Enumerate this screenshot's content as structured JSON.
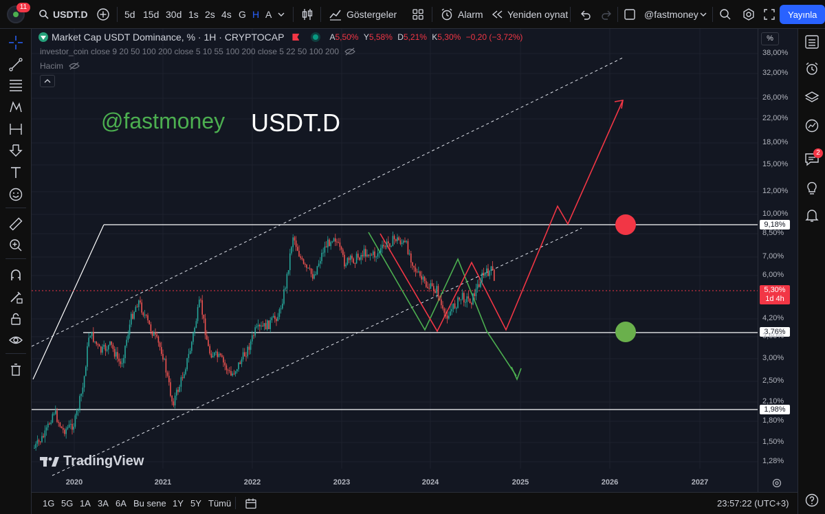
{
  "header": {
    "avatar_badge": "11",
    "symbol": "USDT.D",
    "intervals": [
      "5d",
      "15d",
      "30d",
      "1s",
      "2s",
      "4s",
      "G",
      "H",
      "A"
    ],
    "active_interval": "H",
    "indicators_label": "Göstergeler",
    "alarm_label": "Alarm",
    "replay_label": "Yeniden oynat",
    "layout_name": "@fastmoney",
    "publish_label": "Yayınla"
  },
  "legend": {
    "title": "Market Cap USDT Dominance, % · 1H · CRYPTOCAP",
    "ohlc": {
      "a_label": "A",
      "a": "5,50%",
      "y_label": "Y",
      "y": "5,58%",
      "d_label": "D",
      "d": "5,21%",
      "k_label": "K",
      "k": "5,30%",
      "change": "−0,20 (−3,72%)"
    },
    "indicator": "investor_coin close 9 20 50 100 200 close 5 10 55 100 200 close 5 22 50 100 200",
    "volume": "Hacim"
  },
  "annotations": {
    "handle": "@fastmoney",
    "ticker": "USDT.D"
  },
  "price_scale": {
    "unit": "%",
    "labels": [
      "38,00%",
      "32,00%",
      "26,00%",
      "22,00%",
      "18,00%",
      "15,00%",
      "12,00%",
      "10,00%",
      "8,50%",
      "7,00%",
      "6,00%",
      "4,20%",
      "3,60%",
      "3,00%",
      "2,50%",
      "2,10%",
      "1,80%",
      "1,50%",
      "1,28%"
    ],
    "tag_918": "9,18%",
    "tag_530": "5,30%",
    "tag_530_countdown": "1d 4h",
    "tag_376": "3,76%",
    "tag_198": "1,98%"
  },
  "time_scale": {
    "labels": [
      "2020",
      "2021",
      "2022",
      "2023",
      "2024",
      "2025",
      "2026",
      "2027"
    ]
  },
  "watermark": "TradingView",
  "bottom": {
    "ranges": [
      "1G",
      "5G",
      "1A",
      "3A",
      "6A",
      "Bu sene",
      "1Y",
      "5Y",
      "Tümü"
    ],
    "clock": "23:57:22 (UTC+3)"
  },
  "right_toolbar": {
    "notification_badge": "2"
  },
  "colors": {
    "up": "#26a69a",
    "down": "#ef5350",
    "accent": "#2962ff",
    "green_text": "#4caf50"
  }
}
